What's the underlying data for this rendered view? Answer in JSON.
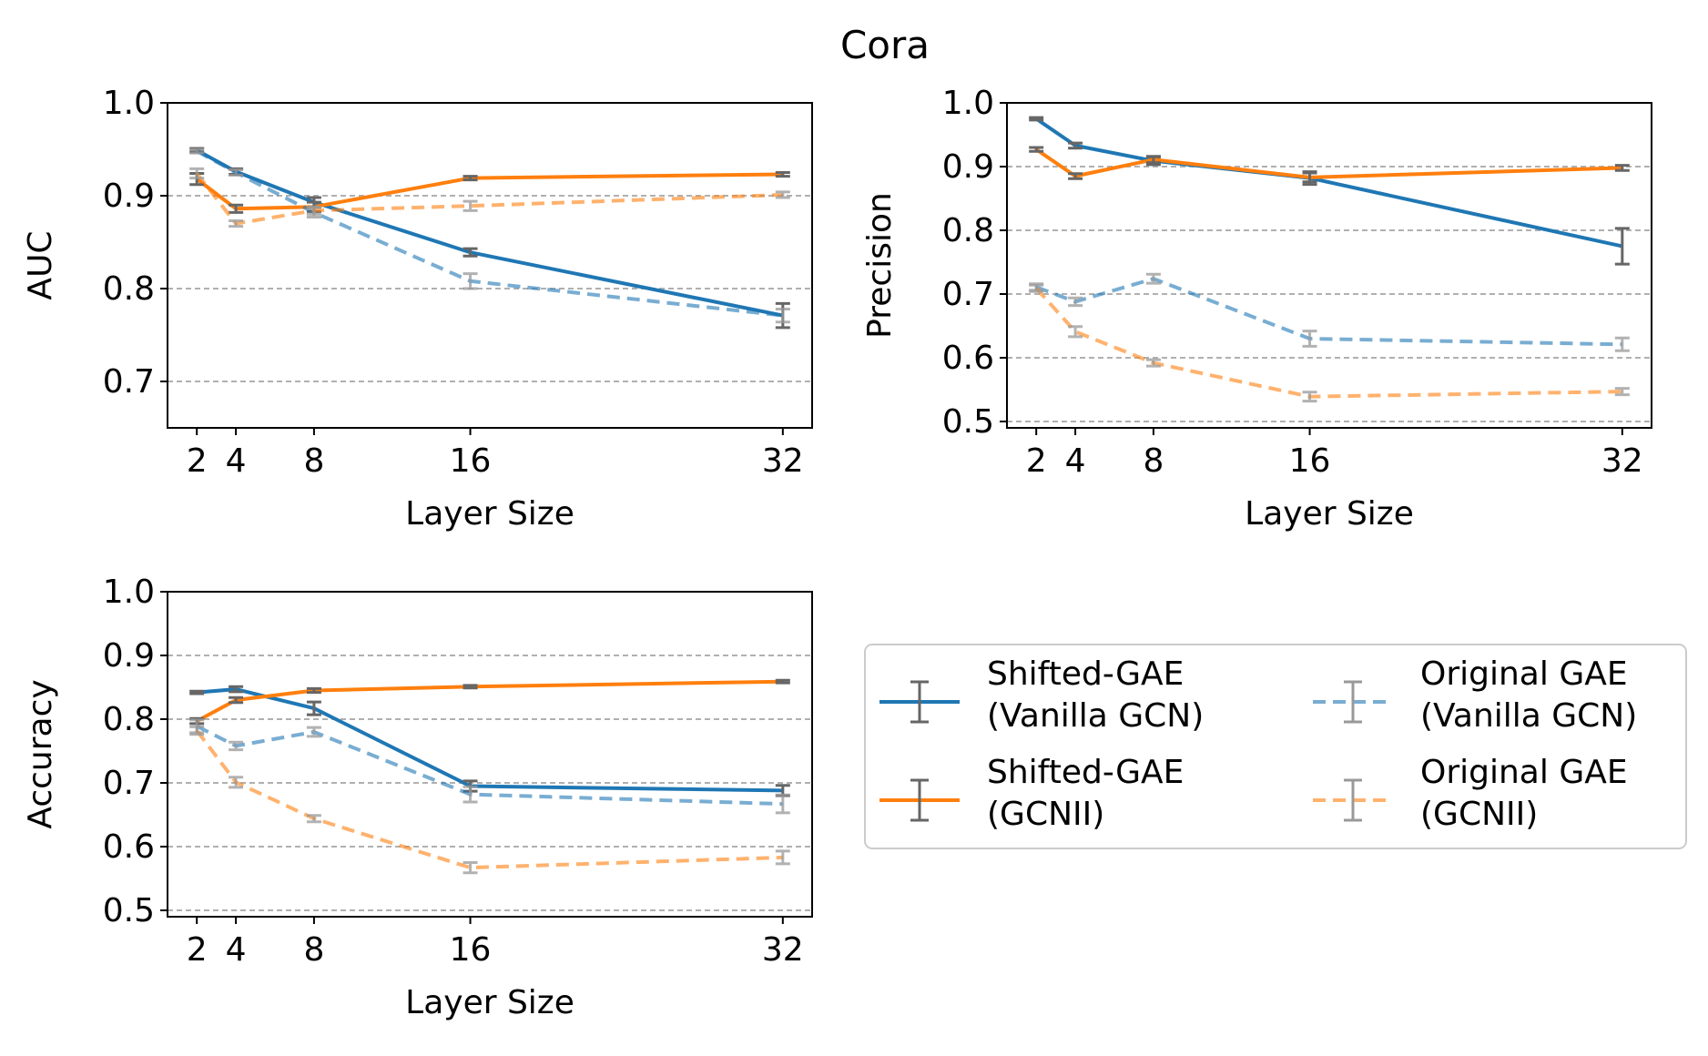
{
  "figure": {
    "title": "Cora"
  },
  "legend": {
    "entries": [
      {
        "line1": "Shifted-GAE",
        "line2": "(Vanilla GCN)",
        "series": "shifted_vanilla"
      },
      {
        "line1": "Shifted-GAE",
        "line2": "(GCNII)",
        "series": "shifted_gcnii"
      },
      {
        "line1": "Original GAE",
        "line2": "(Vanilla GCN)",
        "series": "original_vanilla"
      },
      {
        "line1": "Original GAE",
        "line2": "(GCNII)",
        "series": "original_gcnii"
      }
    ]
  },
  "colors": {
    "blue": "#1f77b4",
    "orange": "#ff7f0e",
    "errorbar_dark": "#666666",
    "errorbar_light": "#999999",
    "grid": "#b0b0b0"
  },
  "chart_data": [
    {
      "type": "line",
      "id": "auc",
      "xlabel": "Layer Size",
      "ylabel": "AUC",
      "x": [
        2,
        4,
        8,
        16,
        32
      ],
      "xticks": [
        2,
        4,
        8,
        16,
        32
      ],
      "xlim": [
        0.5,
        33.5
      ],
      "ylim": [
        0.65,
        1.0
      ],
      "yticks": [
        0.7,
        0.8,
        0.9,
        1.0
      ],
      "ytick_labels": [
        "0.7",
        "0.8",
        "0.9",
        "1.0"
      ],
      "grid": "y-dashed",
      "series": [
        {
          "key": "shifted_vanilla",
          "name": "Shifted-GAE (Vanilla GCN)",
          "style": "solid",
          "color": "#1f77b4",
          "values": [
            0.949,
            0.926,
            0.893,
            0.839,
            0.771
          ],
          "err": [
            0.002,
            0.003,
            0.005,
            0.004,
            0.013
          ]
        },
        {
          "key": "shifted_gcnii",
          "name": "Shifted-GAE (GCNII)",
          "style": "solid",
          "color": "#ff7f0e",
          "values": [
            0.918,
            0.886,
            0.888,
            0.919,
            0.923
          ],
          "err": [
            0.006,
            0.004,
            0.005,
            0.002,
            0.002
          ]
        },
        {
          "key": "original_vanilla",
          "name": "Original GAE (Vanilla GCN)",
          "style": "dashed",
          "color": "#1f77b4",
          "values": [
            0.948,
            0.925,
            0.882,
            0.808,
            0.771
          ],
          "err": [
            0.002,
            0.003,
            0.005,
            0.008,
            0.007
          ]
        },
        {
          "key": "original_gcnii",
          "name": "Original GAE (GCNII)",
          "style": "dashed",
          "color": "#ff7f0e",
          "values": [
            0.924,
            0.87,
            0.884,
            0.889,
            0.901
          ],
          "err": [
            0.005,
            0.003,
            0.004,
            0.005,
            0.003
          ]
        }
      ]
    },
    {
      "type": "line",
      "id": "precision",
      "xlabel": "Layer Size",
      "ylabel": "Precision",
      "x": [
        2,
        4,
        8,
        16,
        32
      ],
      "xticks": [
        2,
        4,
        8,
        16,
        32
      ],
      "xlim": [
        0.5,
        33.5
      ],
      "ylim": [
        0.49,
        1.0
      ],
      "yticks": [
        0.5,
        0.6,
        0.7,
        0.8,
        0.9,
        1.0
      ],
      "ytick_labels": [
        "0.5",
        "0.6",
        "0.7",
        "0.8",
        "0.9",
        "1.0"
      ],
      "grid": "y-dashed",
      "series": [
        {
          "key": "shifted_vanilla",
          "name": "Shifted-GAE (Vanilla GCN)",
          "style": "solid",
          "color": "#1f77b4",
          "values": [
            0.975,
            0.933,
            0.909,
            0.882,
            0.775
          ],
          "err": [
            0.002,
            0.004,
            0.006,
            0.01,
            0.028
          ]
        },
        {
          "key": "shifted_gcnii",
          "name": "Shifted-GAE (GCNII)",
          "style": "solid",
          "color": "#ff7f0e",
          "values": [
            0.927,
            0.885,
            0.911,
            0.883,
            0.898
          ],
          "err": [
            0.003,
            0.004,
            0.005,
            0.007,
            0.004
          ]
        },
        {
          "key": "original_vanilla",
          "name": "Original GAE (Vanilla GCN)",
          "style": "dashed",
          "color": "#1f77b4",
          "values": [
            0.711,
            0.688,
            0.724,
            0.63,
            0.621
          ],
          "err": [
            0.005,
            0.006,
            0.007,
            0.012,
            0.01
          ]
        },
        {
          "key": "original_gcnii",
          "name": "Original GAE (GCNII)",
          "style": "dashed",
          "color": "#ff7f0e",
          "values": [
            0.709,
            0.641,
            0.592,
            0.539,
            0.547
          ],
          "err": [
            0.005,
            0.008,
            0.005,
            0.007,
            0.005
          ]
        }
      ]
    },
    {
      "type": "line",
      "id": "accuracy",
      "xlabel": "Layer Size",
      "ylabel": "Accuracy",
      "x": [
        2,
        4,
        8,
        16,
        32
      ],
      "xticks": [
        2,
        4,
        8,
        16,
        32
      ],
      "xlim": [
        0.5,
        33.5
      ],
      "ylim": [
        0.49,
        1.0
      ],
      "yticks": [
        0.5,
        0.6,
        0.7,
        0.8,
        0.9,
        1.0
      ],
      "ytick_labels": [
        "0.5",
        "0.6",
        "0.7",
        "0.8",
        "0.9",
        "1.0"
      ],
      "grid": "y-dashed",
      "series": [
        {
          "key": "shifted_vanilla",
          "name": "Shifted-GAE (Vanilla GCN)",
          "style": "solid",
          "color": "#1f77b4",
          "values": [
            0.842,
            0.847,
            0.817,
            0.695,
            0.688
          ],
          "err": [
            0.002,
            0.004,
            0.01,
            0.008,
            0.008
          ]
        },
        {
          "key": "shifted_gcnii",
          "name": "Shifted-GAE (GCNII)",
          "style": "solid",
          "color": "#ff7f0e",
          "values": [
            0.797,
            0.83,
            0.845,
            0.851,
            0.859
          ],
          "err": [
            0.004,
            0.004,
            0.003,
            0.002,
            0.002
          ]
        },
        {
          "key": "original_vanilla",
          "name": "Original GAE (Vanilla GCN)",
          "style": "dashed",
          "color": "#1f77b4",
          "values": [
            0.789,
            0.758,
            0.78,
            0.682,
            0.667
          ],
          "err": [
            0.01,
            0.006,
            0.007,
            0.012,
            0.014
          ]
        },
        {
          "key": "original_gcnii",
          "name": "Original GAE (GCNII)",
          "style": "dashed",
          "color": "#ff7f0e",
          "values": [
            0.782,
            0.701,
            0.644,
            0.567,
            0.583
          ],
          "err": [
            0.006,
            0.008,
            0.005,
            0.008,
            0.01
          ]
        }
      ]
    }
  ]
}
